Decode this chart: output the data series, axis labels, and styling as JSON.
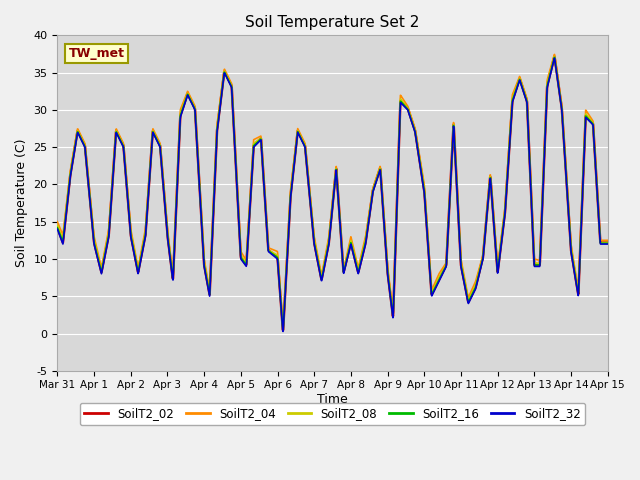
{
  "title": "Soil Temperature Set 2",
  "xlabel": "Time",
  "ylabel": "Soil Temperature (C)",
  "ylim": [
    -5,
    40
  ],
  "plot_bg_color": "#d8d8d8",
  "fig_bg_color": "#f0f0f0",
  "tw_met_label": "TW_met",
  "legend_labels": [
    "SoilT2_02",
    "SoilT2_04",
    "SoilT2_08",
    "SoilT2_16",
    "SoilT2_32"
  ],
  "line_colors": [
    "#cc0000",
    "#ff8c00",
    "#cccc00",
    "#00bb00",
    "#0000cc"
  ],
  "xtick_labels": [
    "Mar 31",
    "Apr 1",
    "Apr 2",
    "Apr 3",
    "Apr 4",
    "Apr 5",
    "Apr 6",
    "Apr 7",
    "Apr 8",
    "Apr 9",
    "Apr 10",
    "Apr 11",
    "Apr 12",
    "Apr 13",
    "Apr 14",
    "Apr 15"
  ],
  "ytick_values": [
    -5,
    0,
    5,
    10,
    15,
    20,
    25,
    30,
    35,
    40
  ],
  "anchors_t": [
    0.0,
    0.15,
    0.35,
    0.55,
    0.75,
    1.0,
    1.2,
    1.4,
    1.6,
    1.8,
    2.0,
    2.2,
    2.4,
    2.6,
    2.8,
    3.0,
    3.15,
    3.35,
    3.55,
    3.75,
    4.0,
    4.15,
    4.35,
    4.55,
    4.75,
    5.0,
    5.15,
    5.35,
    5.55,
    5.75,
    6.0,
    6.15,
    6.35,
    6.55,
    6.75,
    7.0,
    7.2,
    7.4,
    7.6,
    7.8,
    8.0,
    8.2,
    8.4,
    8.6,
    8.8,
    9.0,
    9.15,
    9.35,
    9.55,
    9.75,
    10.0,
    10.2,
    10.4,
    10.6,
    10.8,
    11.0,
    11.2,
    11.4,
    11.6,
    11.8,
    12.0,
    12.2,
    12.4,
    12.6,
    12.8,
    13.0,
    13.15,
    13.35,
    13.55,
    13.75,
    14.0,
    14.2,
    14.4,
    14.6,
    14.8,
    15.0
  ],
  "anchors_v_32": [
    14,
    12,
    21,
    27,
    25,
    12,
    8,
    13,
    27,
    25,
    13,
    8,
    13,
    27,
    25,
    13,
    7,
    29,
    32,
    30,
    9,
    5,
    27,
    35,
    33,
    10,
    9,
    25,
    26,
    11,
    10,
    0,
    18,
    27,
    25,
    12,
    7,
    12,
    22,
    8,
    12,
    8,
    12,
    19,
    22,
    8,
    2,
    31,
    30,
    27,
    19,
    5,
    7,
    9,
    28,
    9,
    4,
    6,
    10,
    21,
    8,
    16,
    31,
    34,
    31,
    9,
    9,
    33,
    37,
    30,
    11,
    5,
    29,
    28,
    12,
    12
  ],
  "offsets_04": [
    1.0,
    1.2,
    0.8,
    0.5,
    0.5,
    1.0,
    0.8,
    1.0,
    0.5,
    0.5,
    1.0,
    0.8,
    1.0,
    0.5,
    0.5,
    1.0,
    0.8,
    1.0,
    0.5,
    0.5,
    1.0,
    0.8,
    1.0,
    0.5,
    0.5,
    1.0,
    0.8,
    1.0,
    0.5,
    0.5,
    1.0,
    0.8,
    1.0,
    0.5,
    0.5,
    1.0,
    0.8,
    1.0,
    0.5,
    0.5,
    1.0,
    0.8,
    1.0,
    0.5,
    0.5,
    1.0,
    0.8,
    1.0,
    0.5,
    0.5,
    1.0,
    0.8,
    1.0,
    0.5,
    0.5,
    1.0,
    0.8,
    1.0,
    0.5,
    0.5,
    1.0,
    0.8,
    1.0,
    0.5,
    0.5,
    1.0,
    0.8,
    1.0,
    0.5,
    0.5,
    1.0,
    0.8,
    1.0,
    0.5,
    0.5,
    0.5
  ],
  "offsets_08": [
    0.5,
    0.6,
    0.4,
    0.2,
    0.2,
    0.5,
    0.4,
    0.5,
    0.2,
    0.2,
    0.5,
    0.4,
    0.5,
    0.2,
    0.2,
    0.5,
    0.4,
    0.5,
    0.2,
    0.2,
    0.5,
    0.4,
    0.5,
    0.2,
    0.2,
    0.5,
    0.4,
    0.5,
    0.2,
    0.2,
    0.5,
    0.4,
    0.5,
    0.2,
    0.2,
    0.5,
    0.4,
    0.5,
    0.2,
    0.2,
    0.5,
    0.4,
    0.5,
    0.2,
    0.2,
    0.5,
    0.4,
    0.5,
    0.2,
    0.2,
    0.5,
    0.4,
    0.5,
    0.2,
    0.2,
    0.5,
    0.4,
    0.5,
    0.2,
    0.2,
    0.5,
    0.4,
    0.5,
    0.2,
    0.2,
    0.5,
    0.4,
    0.5,
    0.2,
    0.2,
    0.5,
    0.4,
    0.5,
    0.2,
    0.2,
    0.2
  ],
  "offsets_16": [
    0.2,
    0.3,
    0.2,
    0.1,
    0.1,
    0.2,
    0.2,
    0.2,
    0.1,
    0.1,
    0.2,
    0.2,
    0.2,
    0.1,
    0.1,
    0.2,
    0.2,
    0.2,
    0.1,
    0.1,
    0.2,
    0.2,
    0.2,
    0.1,
    0.1,
    0.2,
    0.2,
    0.2,
    0.1,
    0.1,
    0.2,
    0.2,
    0.2,
    0.1,
    0.1,
    0.2,
    0.2,
    0.2,
    0.1,
    0.1,
    0.2,
    0.2,
    0.2,
    0.1,
    0.1,
    0.2,
    0.2,
    0.2,
    0.1,
    0.1,
    0.2,
    0.2,
    0.2,
    0.1,
    0.1,
    0.2,
    0.2,
    0.2,
    0.1,
    0.1,
    0.2,
    0.2,
    0.2,
    0.1,
    0.1,
    0.2,
    0.2,
    0.2,
    0.1,
    0.1,
    0.2,
    0.2,
    0.2,
    0.1,
    0.1,
    0.1
  ]
}
